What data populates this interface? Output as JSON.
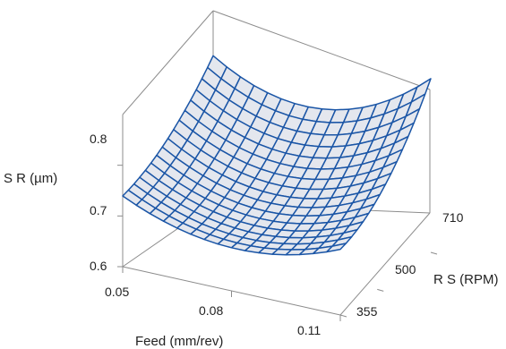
{
  "chart_data": {
    "type": "surface",
    "title": "",
    "xlabel": "Feed (mm/rev)",
    "ylabel": "R S (RPM)",
    "zlabel": "S R (µm)",
    "x_ticks": [
      "0.05",
      "0.08",
      "0.11"
    ],
    "y_ticks": [
      "355",
      "500",
      "710"
    ],
    "z_ticks": [
      "0.6",
      "0.7",
      "0.8"
    ],
    "xlim": [
      0.05,
      0.11
    ],
    "ylim": [
      355,
      710
    ],
    "zlim": [
      0.6,
      0.9
    ],
    "grid_size": [
      16,
      16
    ],
    "surface_model": {
      "description_points": [
        {
          "feed": 0.05,
          "rs": 355,
          "sr": 0.68
        },
        {
          "feed": 0.11,
          "rs": 355,
          "sr": 0.665
        },
        {
          "feed": 0.05,
          "rs": 710,
          "sr": 0.755
        },
        {
          "feed": 0.11,
          "rs": 710,
          "sr": 0.88
        }
      ]
    },
    "colors": {
      "mesh_line": "#1a55a6",
      "surface_fill": "#e4e7ee",
      "box_line": "#8c8c8c"
    }
  }
}
